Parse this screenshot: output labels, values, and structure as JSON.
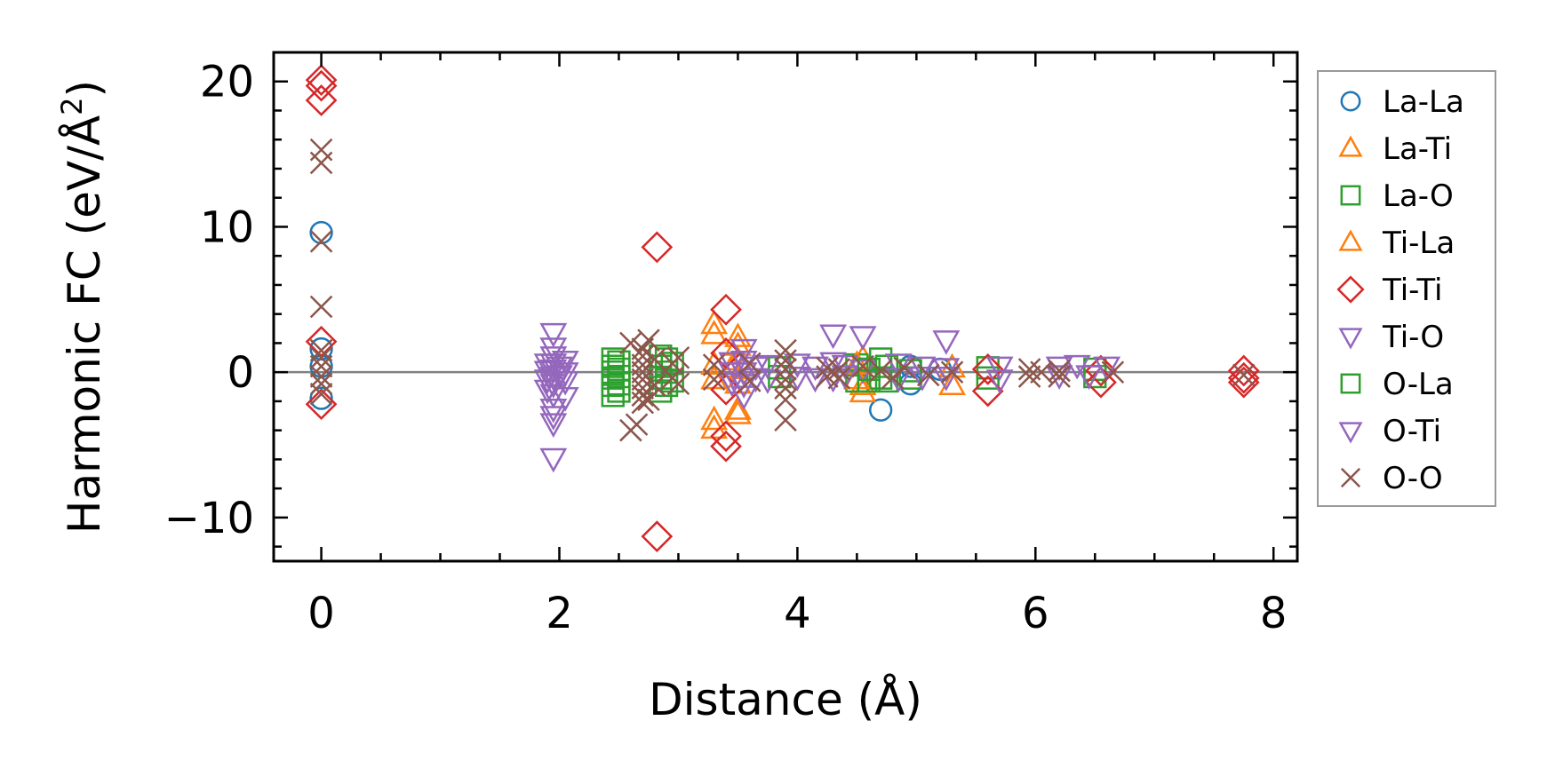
{
  "chart_data": {
    "type": "scatter",
    "title": "",
    "xlabel": "Distance (Å)",
    "ylabel_main": "Harmonic FC (eV/Å",
    "ylabel_sup": "2",
    "ylabel_close": ")",
    "xlim": [
      -0.4,
      8.2
    ],
    "ylim": [
      -13,
      22
    ],
    "x_ticks": [
      0,
      2,
      4,
      6,
      8
    ],
    "x_tick_labels": [
      "0",
      "2",
      "4",
      "6",
      "8"
    ],
    "y_ticks": [
      -10,
      0,
      10,
      20
    ],
    "y_tick_labels": [
      "−10",
      "0",
      "10",
      "20"
    ],
    "grid": false,
    "zero_line": true,
    "legend_position": "right",
    "series": [
      {
        "name": "La-La",
        "marker": "circle",
        "color": "#1f77b4",
        "points": [
          [
            0,
            9.6
          ],
          [
            0,
            1.6
          ],
          [
            0,
            -1.8
          ],
          [
            0,
            0.4
          ],
          [
            4.7,
            -2.6
          ],
          [
            4.95,
            0.4
          ],
          [
            4.95,
            -0.8
          ],
          [
            5.2,
            0.2
          ]
        ]
      },
      {
        "name": "La-Ti",
        "marker": "triangle-up",
        "color": "#ff7f0e",
        "points": [
          [
            3.3,
            3.3
          ],
          [
            3.3,
            2.6
          ],
          [
            3.3,
            -3.3
          ],
          [
            3.3,
            -3.9
          ],
          [
            3.3,
            0.5
          ],
          [
            3.3,
            -0.5
          ],
          [
            3.45,
            0.3
          ],
          [
            4.55,
            0.9
          ],
          [
            4.55,
            -0.9
          ],
          [
            4.55,
            -1.4
          ],
          [
            5.3,
            -0.9
          ],
          [
            5.3,
            0.3
          ]
        ]
      },
      {
        "name": "La-O",
        "marker": "square",
        "color": "#2ca02c",
        "points": [
          [
            2.45,
            0.9
          ],
          [
            2.45,
            0.4
          ],
          [
            2.45,
            0.0
          ],
          [
            2.45,
            -0.4
          ],
          [
            2.45,
            -0.9
          ],
          [
            2.45,
            -1.6
          ],
          [
            2.85,
            1.1
          ],
          [
            2.85,
            0.4
          ],
          [
            2.85,
            -0.4
          ],
          [
            2.85,
            -1.3
          ],
          [
            2.95,
            0.6
          ],
          [
            2.95,
            -0.6
          ],
          [
            3.85,
            0.3
          ],
          [
            3.85,
            -0.3
          ],
          [
            4.5,
            -0.6
          ],
          [
            4.5,
            0.5
          ],
          [
            4.7,
            0.9
          ],
          [
            4.7,
            -0.4
          ],
          [
            4.95,
            0.1
          ],
          [
            4.95,
            -0.4
          ],
          [
            5.6,
            0.3
          ],
          [
            5.6,
            -0.4
          ],
          [
            6.5,
            0.2
          ],
          [
            6.5,
            -0.3
          ]
        ]
      },
      {
        "name": "Ti-La",
        "marker": "triangle-up",
        "color": "#ff7f0e",
        "points": [
          [
            3.5,
            2.4
          ],
          [
            3.5,
            1.8
          ],
          [
            3.5,
            -2.6
          ],
          [
            3.5,
            -2.9
          ],
          [
            3.5,
            0.8
          ],
          [
            3.5,
            -0.8
          ],
          [
            3.55,
            0.2
          ],
          [
            4.5,
            0.5
          ],
          [
            4.5,
            -0.5
          ]
        ]
      },
      {
        "name": "Ti-Ti",
        "marker": "diamond",
        "color": "#d62728",
        "points": [
          [
            0,
            20.1
          ],
          [
            0,
            19.7
          ],
          [
            0,
            18.7
          ],
          [
            0,
            2.1
          ],
          [
            0,
            -2.2
          ],
          [
            2.82,
            8.6
          ],
          [
            2.82,
            -11.3
          ],
          [
            3.4,
            4.3
          ],
          [
            3.4,
            1.3
          ],
          [
            3.4,
            -4.4
          ],
          [
            3.4,
            -5.1
          ],
          [
            3.4,
            -1.2
          ],
          [
            5.6,
            -1.3
          ],
          [
            5.6,
            0.2
          ],
          [
            6.55,
            -0.7
          ],
          [
            6.55,
            0.1
          ],
          [
            7.75,
            0.1
          ],
          [
            7.75,
            -0.4
          ],
          [
            7.75,
            -0.7
          ]
        ]
      },
      {
        "name": "Ti-O",
        "marker": "triangle-down",
        "color": "#9467bd",
        "points": [
          [
            1.95,
            2.7
          ],
          [
            1.95,
            1.7
          ],
          [
            1.95,
            1.1
          ],
          [
            1.95,
            0.6
          ],
          [
            1.95,
            0.2
          ],
          [
            1.95,
            -0.3
          ],
          [
            1.95,
            -0.8
          ],
          [
            1.95,
            -1.5
          ],
          [
            1.95,
            -2.5
          ],
          [
            1.95,
            -3.0
          ],
          [
            1.95,
            -3.5
          ],
          [
            1.95,
            -5.9
          ],
          [
            2.05,
            0.8
          ],
          [
            2.05,
            0.0
          ],
          [
            2.05,
            -0.6
          ],
          [
            2.05,
            -1.7
          ],
          [
            3.55,
            1.6
          ],
          [
            3.55,
            0.8
          ],
          [
            3.55,
            0.0
          ],
          [
            3.55,
            -0.8
          ],
          [
            3.55,
            -1.6
          ],
          [
            3.65,
            0.4
          ],
          [
            3.65,
            -0.4
          ],
          [
            4.3,
            2.6
          ],
          [
            4.3,
            0.7
          ],
          [
            4.3,
            -0.4
          ],
          [
            4.55,
            2.5
          ],
          [
            4.55,
            0.2
          ],
          [
            5.25,
            2.2
          ],
          [
            5.25,
            0.3
          ],
          [
            5.25,
            -0.3
          ]
        ]
      },
      {
        "name": "O-La",
        "marker": "square",
        "color": "#2ca02c",
        "points": [
          [
            2.5,
            0.7
          ],
          [
            2.5,
            0.2
          ],
          [
            2.5,
            -0.3
          ],
          [
            2.5,
            -0.8
          ],
          [
            2.5,
            -1.3
          ],
          [
            2.9,
            0.9
          ],
          [
            2.9,
            0.0
          ],
          [
            2.9,
            -0.9
          ],
          [
            4.6,
            0.2
          ],
          [
            4.6,
            -0.6
          ],
          [
            4.75,
            0.4
          ],
          [
            4.75,
            -0.6
          ]
        ]
      },
      {
        "name": "O-Ti",
        "marker": "triangle-down",
        "color": "#9467bd",
        "points": [
          [
            1.9,
            0.6
          ],
          [
            1.9,
            0.1
          ],
          [
            1.9,
            -0.5
          ],
          [
            1.9,
            -1.2
          ],
          [
            2.0,
            0.4
          ],
          [
            2.0,
            -0.2
          ],
          [
            3.45,
            0.7
          ],
          [
            3.45,
            0.0
          ],
          [
            3.45,
            -0.7
          ],
          [
            3.75,
            0.5
          ],
          [
            3.75,
            -0.5
          ],
          [
            4.0,
            0.6
          ],
          [
            4.0,
            -0.3
          ],
          [
            4.15,
            0.4
          ],
          [
            4.15,
            -0.4
          ],
          [
            4.4,
            0.5
          ],
          [
            4.4,
            -0.2
          ],
          [
            4.85,
            0.6
          ],
          [
            4.85,
            -0.4
          ],
          [
            5.05,
            0.4
          ],
          [
            5.05,
            -0.3
          ],
          [
            5.7,
            0.4
          ],
          [
            5.7,
            -0.5
          ],
          [
            6.2,
            0.4
          ],
          [
            6.2,
            -0.2
          ],
          [
            6.35,
            0.5
          ],
          [
            6.45,
            -0.2
          ],
          [
            6.6,
            0.4
          ]
        ]
      },
      {
        "name": "O-O",
        "marker": "x",
        "color": "#8c564b",
        "points": [
          [
            0,
            15.3
          ],
          [
            0,
            14.4
          ],
          [
            0,
            9.0
          ],
          [
            0,
            4.5
          ],
          [
            0,
            1.5
          ],
          [
            0,
            1.0
          ],
          [
            0,
            0.4
          ],
          [
            0,
            -0.3
          ],
          [
            0,
            -0.8
          ],
          [
            0,
            -1.5
          ],
          [
            2.6,
            2.0
          ],
          [
            2.6,
            -4.0
          ],
          [
            2.65,
            -3.6
          ],
          [
            2.7,
            1.6
          ],
          [
            2.7,
            1.1
          ],
          [
            2.7,
            0.5
          ],
          [
            2.7,
            0.0
          ],
          [
            2.7,
            -0.5
          ],
          [
            2.7,
            -1.1
          ],
          [
            2.7,
            -1.6
          ],
          [
            2.7,
            -2.1
          ],
          [
            2.75,
            2.2
          ],
          [
            2.75,
            -1.9
          ],
          [
            2.8,
            0.9
          ],
          [
            2.8,
            -0.9
          ],
          [
            2.95,
            0.6
          ],
          [
            2.95,
            -0.4
          ],
          [
            3.0,
            1.0
          ],
          [
            3.0,
            -0.8
          ],
          [
            3.3,
            0.5
          ],
          [
            3.3,
            -0.5
          ],
          [
            3.6,
            0.6
          ],
          [
            3.6,
            -0.6
          ],
          [
            3.9,
            1.5
          ],
          [
            3.9,
            0.8
          ],
          [
            3.9,
            0.2
          ],
          [
            3.9,
            -0.5
          ],
          [
            3.9,
            -1.1
          ],
          [
            3.9,
            -1.9
          ],
          [
            3.9,
            -3.3
          ],
          [
            4.25,
            0.3
          ],
          [
            4.25,
            -0.3
          ],
          [
            4.35,
            0.2
          ],
          [
            4.35,
            -0.4
          ],
          [
            4.55,
            0.4
          ],
          [
            4.7,
            0.1
          ],
          [
            4.8,
            -0.4
          ],
          [
            4.9,
            0.3
          ],
          [
            5.1,
            -0.2
          ],
          [
            5.3,
            0.0
          ],
          [
            5.95,
            0.2
          ],
          [
            5.95,
            -0.3
          ],
          [
            6.05,
            0.0
          ],
          [
            6.2,
            0.1
          ],
          [
            6.2,
            -0.3
          ],
          [
            6.65,
            0.0
          ],
          [
            7.75,
            -0.2
          ]
        ]
      }
    ]
  }
}
